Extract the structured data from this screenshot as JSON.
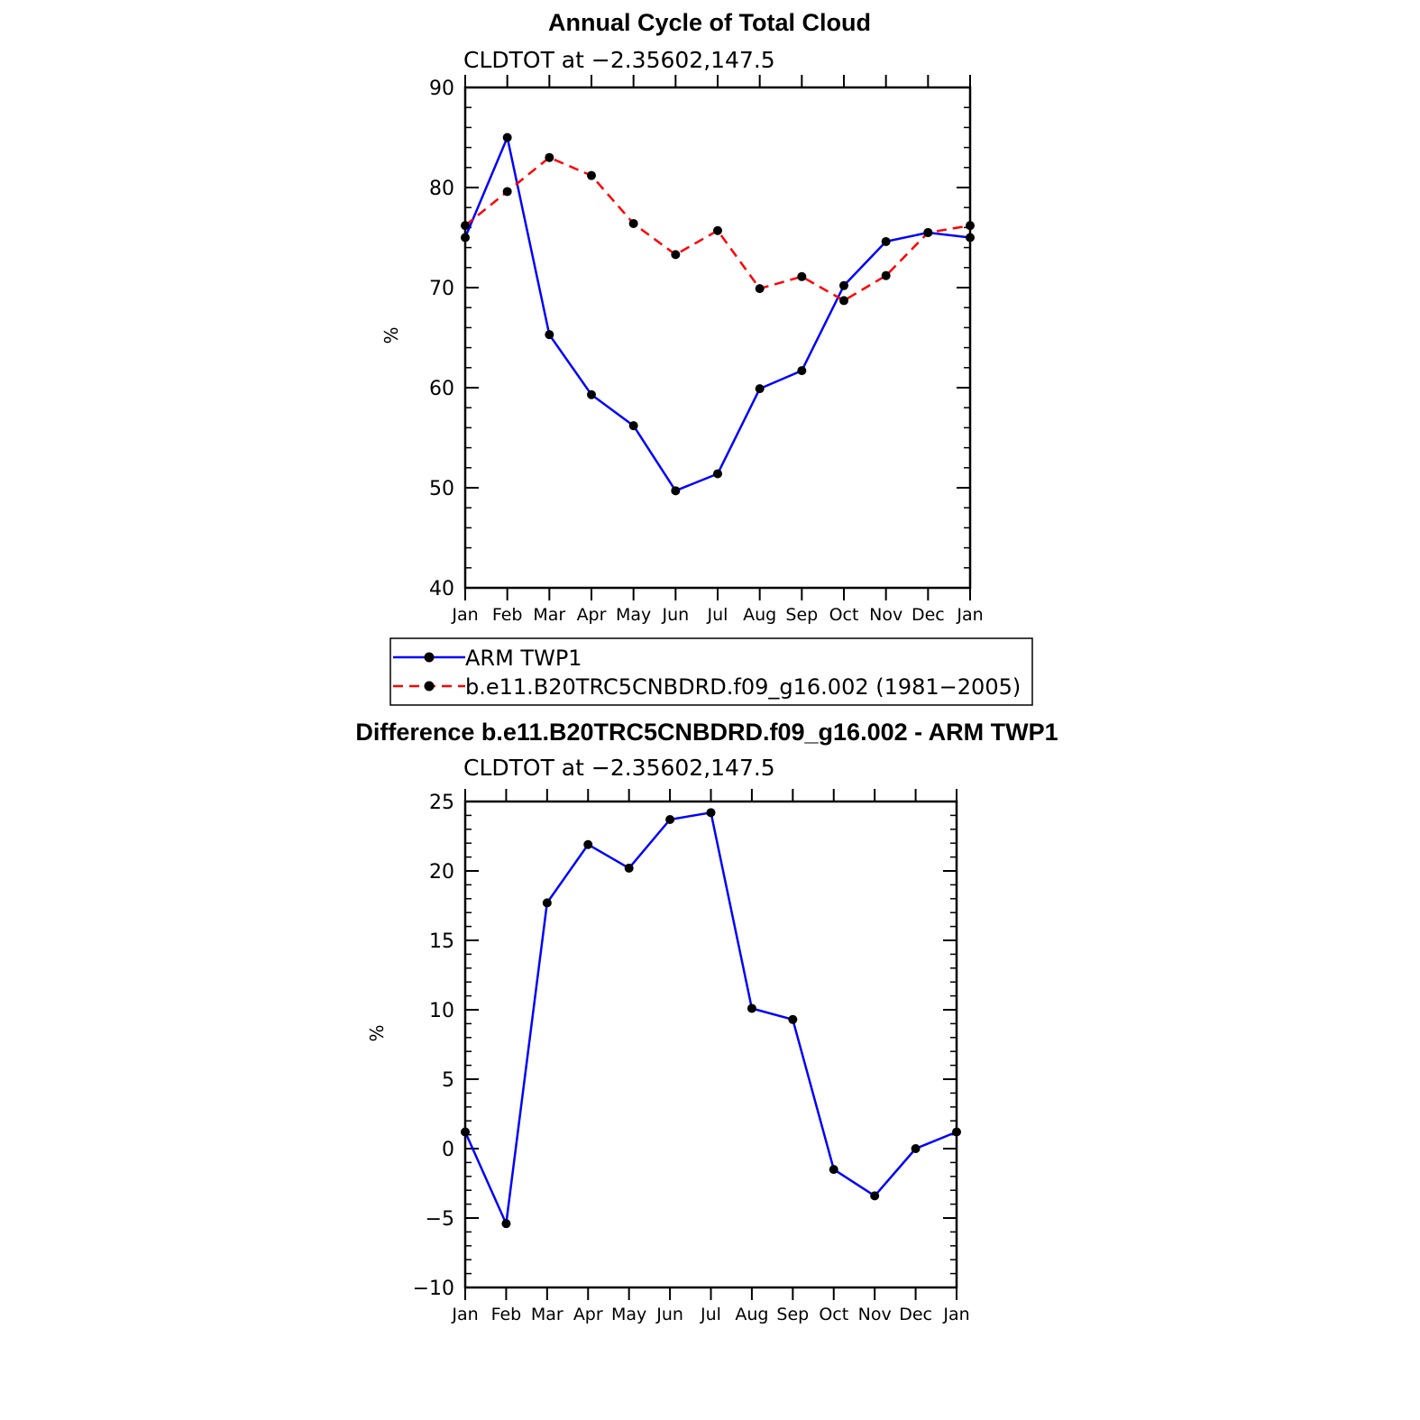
{
  "chart_data": [
    {
      "type": "line",
      "title": "Annual Cycle of Total Cloud",
      "subtitle": "CLDTOT at −2.35602,147.5",
      "ylabel": "%",
      "ylim": [
        40,
        90
      ],
      "yticks": [
        40,
        50,
        60,
        70,
        80,
        90
      ],
      "ytick_labels": [
        "40",
        "50",
        "60",
        "70",
        "80",
        "90"
      ],
      "categories": [
        "Jan",
        "Feb",
        "Mar",
        "Apr",
        "May",
        "Jun",
        "Jul",
        "Aug",
        "Sep",
        "Oct",
        "Nov",
        "Dec",
        "Jan"
      ],
      "series": [
        {
          "name": "ARM TWP1",
          "color": "#0000ff",
          "dash": "solid",
          "values": [
            75.0,
            85.0,
            65.3,
            59.3,
            56.2,
            49.7,
            51.4,
            59.9,
            61.7,
            70.2,
            74.6,
            75.5,
            75.0
          ]
        },
        {
          "name": "b.e11.B20TRC5CNBDRD.f09_g16.002 (1981−2005)",
          "color": "#ff0000",
          "dash": "dashed",
          "values": [
            76.2,
            79.6,
            83.0,
            81.2,
            76.4,
            73.3,
            75.7,
            69.9,
            71.1,
            68.7,
            71.2,
            75.5,
            76.2
          ]
        }
      ],
      "legend_position": "bottom",
      "grid": false
    },
    {
      "type": "line",
      "title": "Difference b.e11.B20TRC5CNBDRD.f09_g16.002 - ARM TWP1",
      "subtitle": "CLDTOT at −2.35602,147.5",
      "ylabel": "%",
      "ylim": [
        -10,
        25
      ],
      "yticks": [
        -10,
        -5,
        0,
        5,
        10,
        15,
        20,
        25
      ],
      "ytick_labels": [
        "−10",
        "−5",
        "0",
        "5",
        "10",
        "15",
        "20",
        "25"
      ],
      "categories": [
        "Jan",
        "Feb",
        "Mar",
        "Apr",
        "May",
        "Jun",
        "Jul",
        "Aug",
        "Sep",
        "Oct",
        "Nov",
        "Dec",
        "Jan"
      ],
      "series": [
        {
          "color": "#0000ff",
          "dash": "solid",
          "values": [
            1.2,
            -5.4,
            17.7,
            21.9,
            20.2,
            23.7,
            24.2,
            10.1,
            9.3,
            -1.5,
            -3.4,
            0.0,
            1.2
          ]
        }
      ],
      "grid": false
    }
  ]
}
